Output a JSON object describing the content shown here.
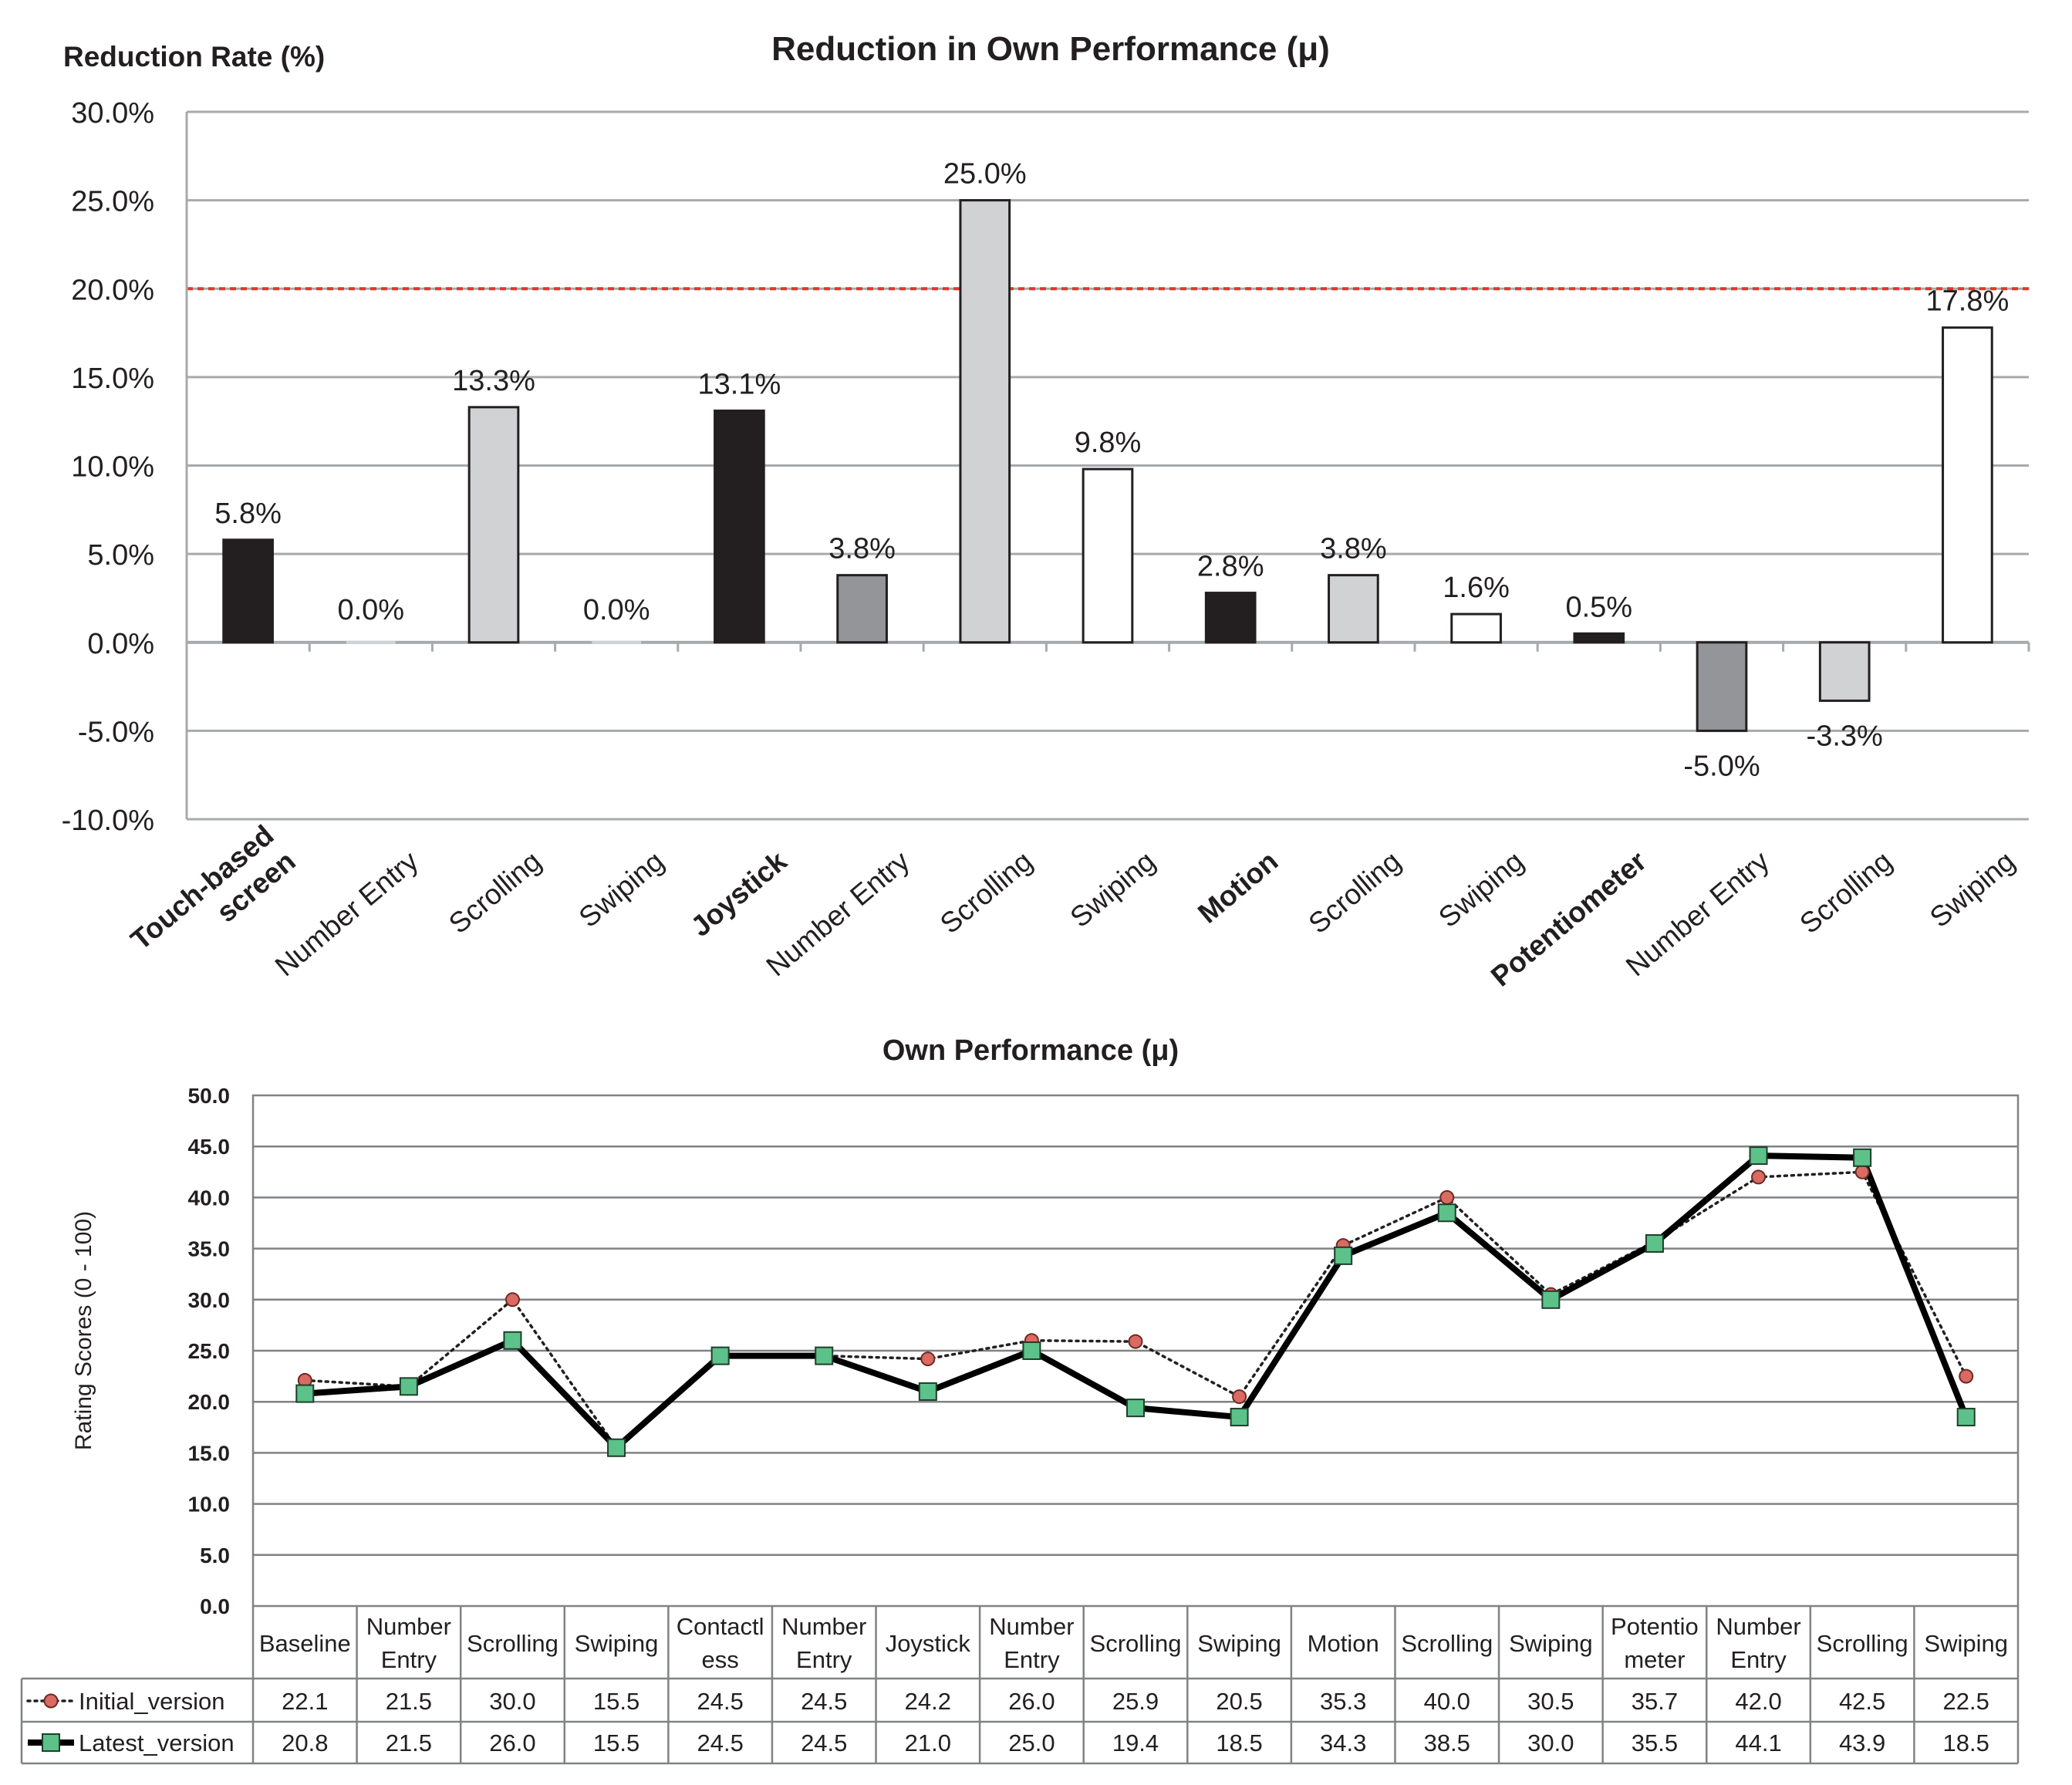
{
  "chart_data": [
    {
      "type": "bar",
      "title": "Reduction in Own Performance (μ)",
      "ylabel": "Reduction Rate (%)",
      "xlabel": "",
      "ylim": [
        -10,
        30
      ],
      "yticks": [
        "30.0%",
        "25.0%",
        "20.0%",
        "15.0%",
        "10.0%",
        "5.0%",
        "0.0%",
        "-5.0%",
        "-10.0%"
      ],
      "grid": true,
      "threshold": 20.0,
      "threshold_color": "#e8322b",
      "categories": [
        "Touch-based screen",
        "Number Entry",
        "Scrolling",
        "Swiping",
        "Joystick",
        "Number Entry",
        "Scrolling",
        "Swiping",
        "Motion",
        "Scrolling",
        "Swiping",
        "Potentiometer",
        "Number Entry",
        "Scrolling",
        "Swiping"
      ],
      "category_lines": [
        [
          "Touch-based",
          "screen"
        ],
        [
          "Number Entry"
        ],
        [
          "Scrolling"
        ],
        [
          "Swiping"
        ],
        [
          "Joystick"
        ],
        [
          "Number Entry"
        ],
        [
          "Scrolling"
        ],
        [
          "Swiping"
        ],
        [
          "Motion"
        ],
        [
          "Scrolling"
        ],
        [
          "Swiping"
        ],
        [
          "Potentiometer"
        ],
        [
          "Number Entry"
        ],
        [
          "Scrolling"
        ],
        [
          "Swiping"
        ]
      ],
      "category_bold": [
        true,
        false,
        false,
        false,
        true,
        false,
        false,
        false,
        true,
        false,
        false,
        true,
        false,
        false,
        false
      ],
      "values": [
        5.8,
        0.0,
        13.3,
        0.0,
        13.1,
        3.8,
        25.0,
        9.8,
        2.8,
        3.8,
        1.6,
        0.5,
        -5.0,
        -3.3,
        17.8
      ],
      "value_labels": [
        "5.8%",
        "0.0%",
        "13.3%",
        "0.0%",
        "13.1%",
        "3.8%",
        "25.0%",
        "9.8%",
        "2.8%",
        "3.8%",
        "1.6%",
        "0.5%",
        "-5.0%",
        "-3.3%",
        "17.8%"
      ],
      "bar_colors": [
        "#231f20",
        "#d0d2d3",
        "#d0d2d3",
        "#d0d2d3",
        "#231f20",
        "#939598",
        "#d0d2d3",
        "#ffffff",
        "#231f20",
        "#d0d2d3",
        "#ffffff",
        "#231f20",
        "#939598",
        "#d0d2d3",
        "#ffffff"
      ]
    },
    {
      "type": "line",
      "title": "Own Performance (μ)",
      "ylabel": "Rating Scores (0 - 100)",
      "xlabel": "",
      "ylim": [
        0,
        50
      ],
      "yticks": [
        "50.0",
        "45.0",
        "40.0",
        "35.0",
        "30.0",
        "25.0",
        "20.0",
        "15.0",
        "10.0",
        "5.0",
        "0.0"
      ],
      "grid": true,
      "categories": [
        "Baseline",
        "Number Entry",
        "Scrolling",
        "Swiping",
        "Contactless",
        "Number Entry",
        "Joystick",
        "Number Entry",
        "Scrolling",
        "Swiping",
        "Motion",
        "Scrolling",
        "Swiping",
        "Potentiometer",
        "Number Entry",
        "Scrolling",
        "Swiping"
      ],
      "category_lines": [
        [
          "Baseline"
        ],
        [
          "Number",
          "Entry"
        ],
        [
          "Scrolling"
        ],
        [
          "Swiping"
        ],
        [
          "Contactl",
          "ess"
        ],
        [
          "Number",
          "Entry"
        ],
        [
          "Joystick"
        ],
        [
          "Number",
          "Entry"
        ],
        [
          "Scrolling"
        ],
        [
          "Swiping"
        ],
        [
          "Motion"
        ],
        [
          "Scrolling"
        ],
        [
          "Swiping"
        ],
        [
          "Potentio",
          "meter"
        ],
        [
          "Number",
          "Entry"
        ],
        [
          "Scrolling"
        ],
        [
          "Swiping"
        ]
      ],
      "series": [
        {
          "name": "Initial_version",
          "style": "dotted",
          "marker": "circle",
          "marker_color": "#d96b63",
          "values": [
            22.1,
            21.5,
            30.0,
            15.5,
            24.5,
            24.5,
            24.2,
            26.0,
            25.9,
            20.5,
            35.3,
            40.0,
            30.5,
            35.7,
            42.0,
            42.5,
            22.5
          ],
          "value_labels": [
            "22.1",
            "21.5",
            "30.0",
            "15.5",
            "24.5",
            "24.5",
            "24.2",
            "26.0",
            "25.9",
            "20.5",
            "35.3",
            "40.0",
            "30.5",
            "35.7",
            "42.0",
            "42.5",
            "22.5"
          ]
        },
        {
          "name": "Latest_version",
          "style": "solid",
          "marker": "square",
          "marker_color": "#5cc28a",
          "values": [
            20.8,
            21.5,
            26.0,
            15.5,
            24.5,
            24.5,
            21.0,
            25.0,
            19.4,
            18.5,
            34.3,
            38.5,
            30.0,
            35.5,
            44.1,
            43.9,
            18.5
          ],
          "value_labels": [
            "20.8",
            "21.5",
            "26.0",
            "15.5",
            "24.5",
            "24.5",
            "21.0",
            "25.0",
            "19.4",
            "18.5",
            "34.3",
            "38.5",
            "30.0",
            "35.5",
            "44.1",
            "43.9",
            "18.5"
          ]
        }
      ]
    }
  ]
}
